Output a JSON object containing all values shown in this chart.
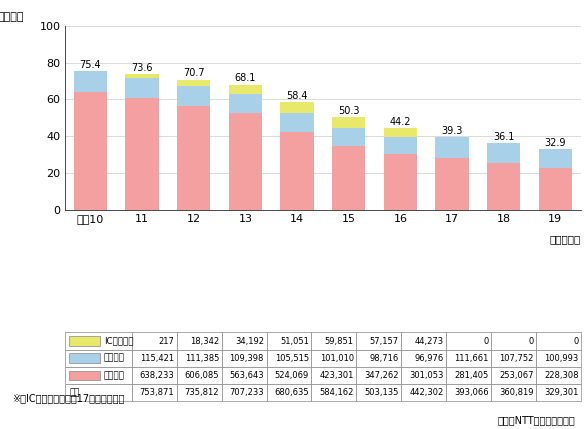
{
  "years": [
    "平成10",
    "11",
    "12",
    "13",
    "14",
    "15",
    "16",
    "17",
    "18",
    "19"
  ],
  "ic_card": [
    217,
    18342,
    34192,
    51051,
    59851,
    57157,
    44273,
    0,
    0,
    0
  ],
  "digital": [
    115421,
    111385,
    109398,
    105515,
    101010,
    98716,
    96976,
    111661,
    107752,
    100993
  ],
  "analog": [
    638233,
    606085,
    563643,
    524069,
    423301,
    347262,
    301053,
    281405,
    253067,
    228308
  ],
  "total_labels": [
    75.4,
    73.6,
    70.7,
    68.1,
    58.4,
    50.3,
    44.2,
    39.3,
    36.1,
    32.9
  ],
  "color_ic": "#e8e86a",
  "color_digital": "#a8d0e8",
  "color_analog": "#f4a0a0",
  "ylim": [
    0,
    100
  ],
  "yticks": [
    0,
    20,
    40,
    60,
    80,
    100
  ],
  "ylabel": "（万台）",
  "xlabel_note": "（年度末）",
  "row_labels": [
    "ICカード型",
    "デジタル",
    "アナログ",
    "合計"
  ],
  "table_ic": [
    "217",
    "18,342",
    "34,192",
    "51,051",
    "59,851",
    "57,157",
    "44,273",
    "0",
    "0",
    "0"
  ],
  "table_digital": [
    "115,421",
    "111,385",
    "109,398",
    "105,515",
    "101,010",
    "98,716",
    "96,976",
    "111,661",
    "107,752",
    "100,993"
  ],
  "table_analog": [
    "638,233",
    "606,085",
    "563,643",
    "524,069",
    "423,301",
    "347,262",
    "301,053",
    "281,405",
    "253,067",
    "228,308"
  ],
  "table_total": [
    "753,871",
    "735,812",
    "707,233",
    "680,635",
    "584,162",
    "503,135",
    "442,302",
    "393,066",
    "360,819",
    "329,301"
  ],
  "note": "※　ICカード型は平成17年度末で終了",
  "source": "東・西NTT資料により作成",
  "bg_color": "#ffffff",
  "grid_color": "#cccccc"
}
